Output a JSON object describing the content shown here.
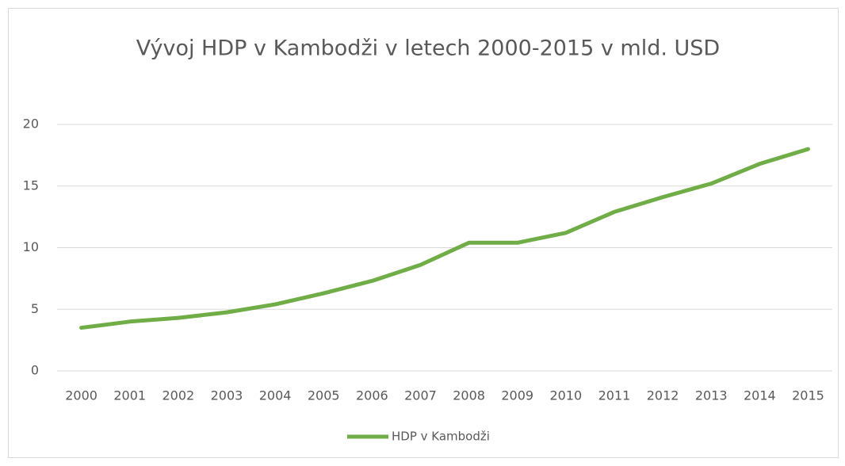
{
  "chart_data": {
    "type": "line",
    "title": "Vývoj HDP v Kambodži v letech 2000-2015 v mld. USD",
    "categories": [
      "2000",
      "2001",
      "2002",
      "2003",
      "2004",
      "2005",
      "2006",
      "2007",
      "2008",
      "2009",
      "2010",
      "2011",
      "2012",
      "2013",
      "2014",
      "2015"
    ],
    "series": [
      {
        "name": "HDP v Kambodži",
        "color": "#70ad47",
        "values": [
          3.5,
          4.0,
          4.3,
          4.75,
          5.4,
          6.3,
          7.3,
          8.6,
          10.4,
          10.4,
          11.2,
          12.9,
          14.1,
          15.2,
          16.8,
          18.0
        ]
      }
    ],
    "ylim": [
      0,
      20
    ],
    "yticks": [
      0,
      5,
      10,
      15,
      20
    ],
    "grid": true,
    "legend": "bottom"
  }
}
